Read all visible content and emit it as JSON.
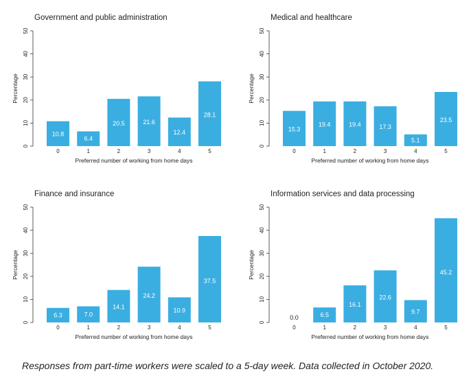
{
  "caption": "Responses from part-time workers were scaled to a 5-day week. Data collected in October 2020.",
  "bar_color": "#3aaee1",
  "chart_data": [
    {
      "type": "bar",
      "title": "Government and public administration",
      "xlabel": "Preferred number of working from home days",
      "ylabel": "Percentage",
      "ylim": [
        0,
        50
      ],
      "yticks": [
        "0",
        "10",
        "20",
        "30",
        "40",
        "50"
      ],
      "categories": [
        "0",
        "1",
        "2",
        "3",
        "4",
        "5"
      ],
      "values": [
        10.8,
        6.4,
        20.5,
        21.6,
        12.4,
        28.1
      ],
      "value_labels": [
        "10.8",
        "6.4",
        "20.5",
        "21.6",
        "12.4",
        "28.1"
      ]
    },
    {
      "type": "bar",
      "title": "Medical and healthcare",
      "xlabel": "Preferred number of working from home days",
      "ylabel": "Percentage",
      "ylim": [
        0,
        50
      ],
      "yticks": [
        "0",
        "10",
        "20",
        "30",
        "40",
        "50"
      ],
      "categories": [
        "0",
        "1",
        "2",
        "3",
        "4",
        "5"
      ],
      "values": [
        15.3,
        19.4,
        19.4,
        17.3,
        5.1,
        23.5
      ],
      "value_labels": [
        "15.3",
        "19.4",
        "19.4",
        "17.3",
        "5.1",
        "23.5"
      ]
    },
    {
      "type": "bar",
      "title": "Finance and insurance",
      "xlabel": "Preferred number of working from home days",
      "ylabel": "Percentage",
      "ylim": [
        0,
        50
      ],
      "yticks": [
        "0",
        "10",
        "20",
        "30",
        "40",
        "50"
      ],
      "categories": [
        "0",
        "1",
        "2",
        "3",
        "4",
        "5"
      ],
      "values": [
        6.3,
        7.0,
        14.1,
        24.2,
        10.9,
        37.5
      ],
      "value_labels": [
        "6.3",
        "7.0",
        "14.1",
        "24.2",
        "10.9",
        "37.5"
      ]
    },
    {
      "type": "bar",
      "title": "Information services and data processing",
      "xlabel": "Preferred number of working from home days",
      "ylabel": "Percentage",
      "ylim": [
        0,
        50
      ],
      "yticks": [
        "0",
        "10",
        "20",
        "30",
        "40",
        "50"
      ],
      "categories": [
        "0",
        "1",
        "2",
        "3",
        "4",
        "5"
      ],
      "values": [
        0.0,
        6.5,
        16.1,
        22.6,
        9.7,
        45.2
      ],
      "value_labels": [
        "0.0",
        "6.5",
        "16.1",
        "22.6",
        "9.7",
        "45.2"
      ]
    }
  ]
}
